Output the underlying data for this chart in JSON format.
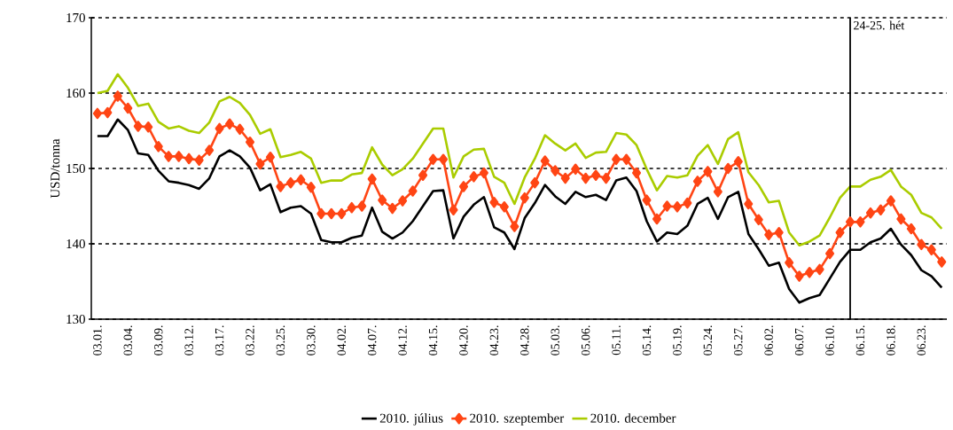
{
  "chart_data": {
    "type": "line",
    "ylabel": "USD/tonna",
    "categories": [
      "03.01.",
      null,
      null,
      "03.04.",
      null,
      null,
      "03.09.",
      null,
      null,
      "03.12.",
      null,
      null,
      "03.17.",
      null,
      null,
      "03.22.",
      null,
      null,
      "03.25.",
      null,
      null,
      "03.30.",
      null,
      null,
      "04.02.",
      null,
      null,
      "04.07.",
      null,
      null,
      "04.12.",
      null,
      null,
      "04.15.",
      null,
      null,
      "04.20.",
      null,
      null,
      "04.23.",
      null,
      null,
      "04.28.",
      null,
      null,
      "05.03.",
      null,
      null,
      "05.06.",
      null,
      null,
      "05.11.",
      null,
      null,
      "05.14.",
      null,
      null,
      "05.19.",
      null,
      null,
      "05.24.",
      null,
      null,
      "05.27.",
      null,
      null,
      "06.02.",
      null,
      null,
      "06.07.",
      null,
      null,
      "06.10.",
      null,
      null,
      "06.15.",
      null,
      null,
      "06.18.",
      null,
      null,
      "06.23.",
      null,
      null
    ],
    "series": [
      {
        "name": "2010. július",
        "color": "#000000",
        "marker": "none",
        "values": [
          154.3,
          154.3,
          156.5,
          155.1,
          152.0,
          151.8,
          149.7,
          148.3,
          148.1,
          147.8,
          147.3,
          148.7,
          151.6,
          152.4,
          151.6,
          150.1,
          147.1,
          147.9,
          144.2,
          144.8,
          145.0,
          144.0,
          140.5,
          140.2,
          140.2,
          140.8,
          141.1,
          144.8,
          141.6,
          140.7,
          141.5,
          143.0,
          145.0,
          147.0,
          147.1,
          140.7,
          143.6,
          145.2,
          146.2,
          142.2,
          141.5,
          139.3,
          143.4,
          145.4,
          147.8,
          146.3,
          145.3,
          146.9,
          146.2,
          146.5,
          145.8,
          148.4,
          148.8,
          147.0,
          143.0,
          140.3,
          141.5,
          141.3,
          142.4,
          145.3,
          146.1,
          143.3,
          146.2,
          146.9,
          141.3,
          139.3,
          137.1,
          137.5,
          134.0,
          132.2,
          132.8,
          133.2,
          135.4,
          137.6,
          139.2,
          139.2,
          140.2,
          140.7,
          142.0,
          139.9,
          138.5,
          136.5,
          135.7,
          134.2
        ]
      },
      {
        "name": "2010. szeptember",
        "color": "#ff4514",
        "marker": "diamond",
        "values": [
          157.3,
          157.4,
          159.6,
          158.0,
          155.6,
          155.5,
          152.9,
          151.6,
          151.6,
          151.3,
          151.1,
          152.4,
          155.3,
          155.9,
          155.2,
          153.5,
          150.6,
          151.5,
          147.6,
          148.1,
          148.5,
          147.5,
          144.0,
          144.0,
          144.0,
          144.8,
          145.0,
          148.6,
          145.8,
          144.7,
          145.7,
          147.0,
          149.1,
          151.2,
          151.2,
          144.5,
          147.6,
          148.9,
          149.4,
          145.5,
          144.9,
          142.3,
          146.1,
          148.1,
          151.0,
          149.7,
          148.7,
          149.9,
          148.7,
          149.1,
          148.7,
          151.2,
          151.2,
          149.4,
          145.8,
          143.3,
          145.0,
          144.9,
          145.4,
          148.3,
          149.6,
          146.9,
          150.0,
          150.9,
          145.3,
          143.2,
          141.2,
          141.5,
          137.5,
          135.7,
          136.2,
          136.6,
          138.7,
          141.5,
          142.9,
          142.9,
          144.1,
          144.5,
          145.7,
          143.3,
          142.0,
          139.9,
          139.2,
          137.6
        ]
      },
      {
        "name": "2010. december",
        "color": "#aacc00",
        "marker": "none",
        "values": [
          160.0,
          160.3,
          162.5,
          160.7,
          158.3,
          158.6,
          156.2,
          155.3,
          155.6,
          155.0,
          154.7,
          156.1,
          158.9,
          159.5,
          158.7,
          157.1,
          154.6,
          155.2,
          151.5,
          151.8,
          152.2,
          151.3,
          148.1,
          148.4,
          148.4,
          149.2,
          149.4,
          152.8,
          150.5,
          149.1,
          149.9,
          151.3,
          153.3,
          155.3,
          155.3,
          148.8,
          151.6,
          152.5,
          152.6,
          148.9,
          148.1,
          145.3,
          148.8,
          151.3,
          154.4,
          153.3,
          152.4,
          153.3,
          151.4,
          152.1,
          152.2,
          154.7,
          154.5,
          153.1,
          149.9,
          147.1,
          149.0,
          148.8,
          149.1,
          151.7,
          153.1,
          150.6,
          153.9,
          154.8,
          149.5,
          147.8,
          145.5,
          145.7,
          141.5,
          139.8,
          140.3,
          141.1,
          143.5,
          146.1,
          147.6,
          147.6,
          148.5,
          148.9,
          149.8,
          147.6,
          146.5,
          144.1,
          143.5,
          142.0
        ]
      }
    ],
    "ylim": [
      130,
      170
    ],
    "yticks": [
      130,
      140,
      150,
      160,
      170
    ],
    "grid": "y",
    "legend": "bottom",
    "line_style": "solid",
    "annotations": [
      "24-25. hét"
    ]
  }
}
